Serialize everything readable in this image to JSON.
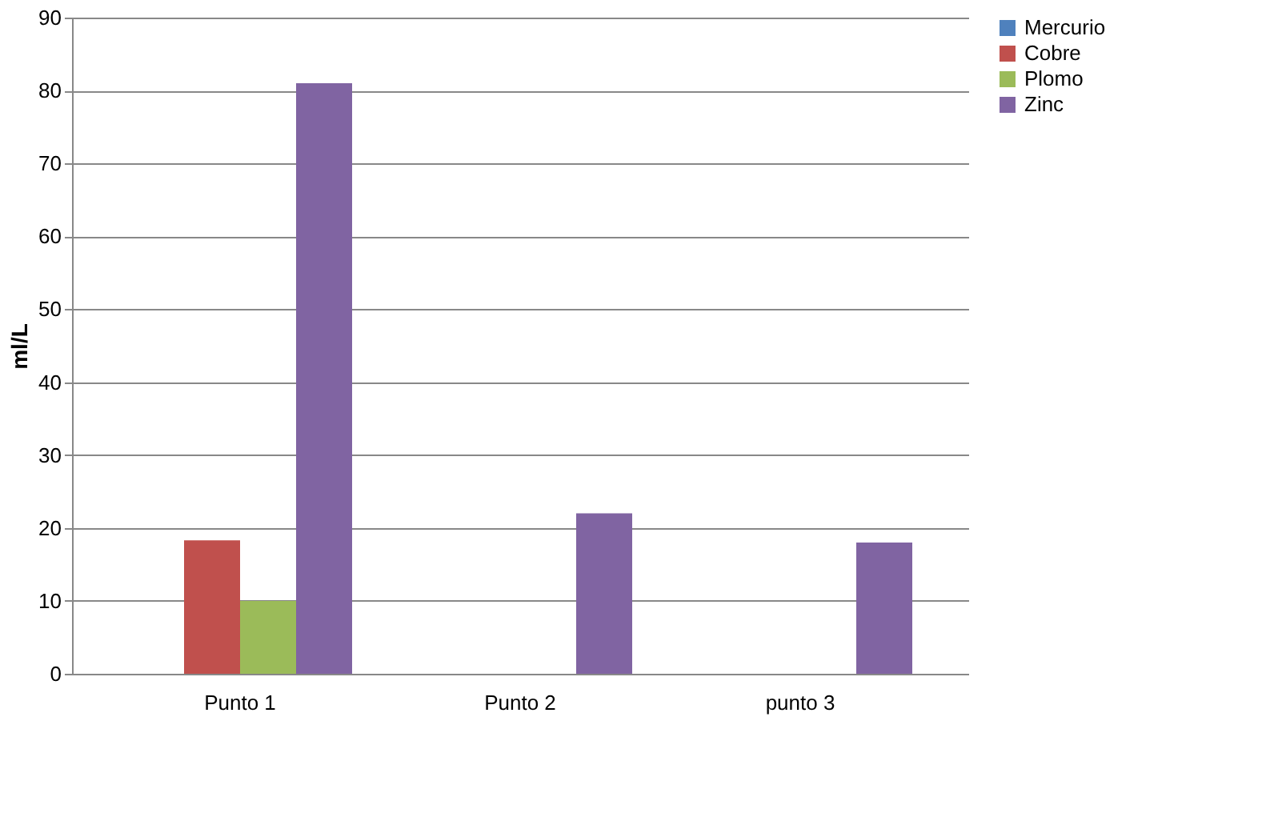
{
  "chart_data": {
    "type": "bar",
    "ylabel": "ml/L",
    "categories": [
      "Punto 1",
      "Punto 2",
      "punto 3"
    ],
    "series": [
      {
        "name": "Mercurio",
        "color": "#4f81bd",
        "values": [
          0,
          0,
          0
        ]
      },
      {
        "name": "Cobre",
        "color": "#c0504d",
        "values": [
          18.3,
          0,
          0
        ]
      },
      {
        "name": "Plomo",
        "color": "#9bbb59",
        "values": [
          10,
          0,
          0
        ]
      },
      {
        "name": "Zinc",
        "color": "#8064a2",
        "values": [
          81,
          22,
          18
        ]
      }
    ],
    "ylim": [
      0,
      90
    ],
    "yticks": [
      0,
      10,
      20,
      30,
      40,
      50,
      60,
      70,
      80,
      90
    ],
    "grid": "y",
    "legend": "right"
  }
}
